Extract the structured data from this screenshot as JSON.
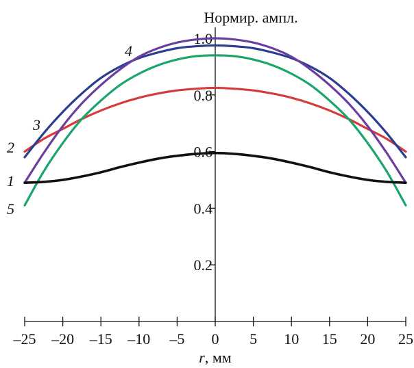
{
  "chart_data": {
    "type": "line",
    "ylabel": "Нормир. ампл.",
    "xlabel_italic": "r",
    "xlabel_rest": ", мм",
    "xlim": [
      -25,
      25
    ],
    "ylim": [
      0,
      1.0
    ],
    "x_ticks": [
      -25,
      -20,
      -15,
      -10,
      -5,
      0,
      5,
      10,
      15,
      20,
      25
    ],
    "x_tick_labels": [
      "–25",
      "–20",
      "–15",
      "–10",
      "–5",
      "0",
      "5",
      "10",
      "15",
      "20",
      "25"
    ],
    "y_ticks": [
      0.2,
      0.4,
      0.6,
      0.8,
      1.0
    ],
    "y_tick_labels": [
      "0.2",
      "0.4",
      "0.6",
      "0.8",
      "1.0"
    ],
    "grid": false,
    "x": [
      -25,
      -22.5,
      -20,
      -17.5,
      -15,
      -12.5,
      -10,
      -7.5,
      -5,
      -2.5,
      0,
      2.5,
      5,
      7.5,
      10,
      12.5,
      15,
      17.5,
      20,
      22.5,
      25
    ],
    "series": [
      {
        "label": "1",
        "color": "#111111",
        "values": [
          0.49,
          0.493,
          0.5,
          0.512,
          0.527,
          0.545,
          0.561,
          0.575,
          0.585,
          0.592,
          0.595,
          0.592,
          0.585,
          0.575,
          0.561,
          0.545,
          0.527,
          0.512,
          0.5,
          0.493,
          0.49
        ]
      },
      {
        "label": "2",
        "color": "#2b3d8f",
        "values": [
          0.58,
          0.665,
          0.74,
          0.805,
          0.86,
          0.9,
          0.93,
          0.95,
          0.965,
          0.972,
          0.975,
          0.972,
          0.965,
          0.95,
          0.93,
          0.9,
          0.86,
          0.805,
          0.74,
          0.665,
          0.58
        ]
      },
      {
        "label": "3",
        "color": "#d43c3c",
        "values": [
          0.6,
          0.645,
          0.68,
          0.715,
          0.745,
          0.77,
          0.79,
          0.805,
          0.816,
          0.822,
          0.825,
          0.822,
          0.816,
          0.805,
          0.79,
          0.77,
          0.745,
          0.715,
          0.68,
          0.645,
          0.6
        ]
      },
      {
        "label": "4",
        "color": "#6b3fa0",
        "values": [
          0.49,
          0.595,
          0.69,
          0.77,
          0.835,
          0.89,
          0.935,
          0.965,
          0.985,
          0.996,
          1.0,
          0.996,
          0.985,
          0.965,
          0.935,
          0.89,
          0.835,
          0.77,
          0.69,
          0.595,
          0.49
        ]
      },
      {
        "label": "5",
        "color": "#1aa56b",
        "values": [
          0.41,
          0.53,
          0.63,
          0.715,
          0.78,
          0.835,
          0.875,
          0.905,
          0.925,
          0.937,
          0.94,
          0.937,
          0.925,
          0.905,
          0.875,
          0.835,
          0.78,
          0.715,
          0.63,
          0.53,
          0.41
        ]
      }
    ]
  }
}
